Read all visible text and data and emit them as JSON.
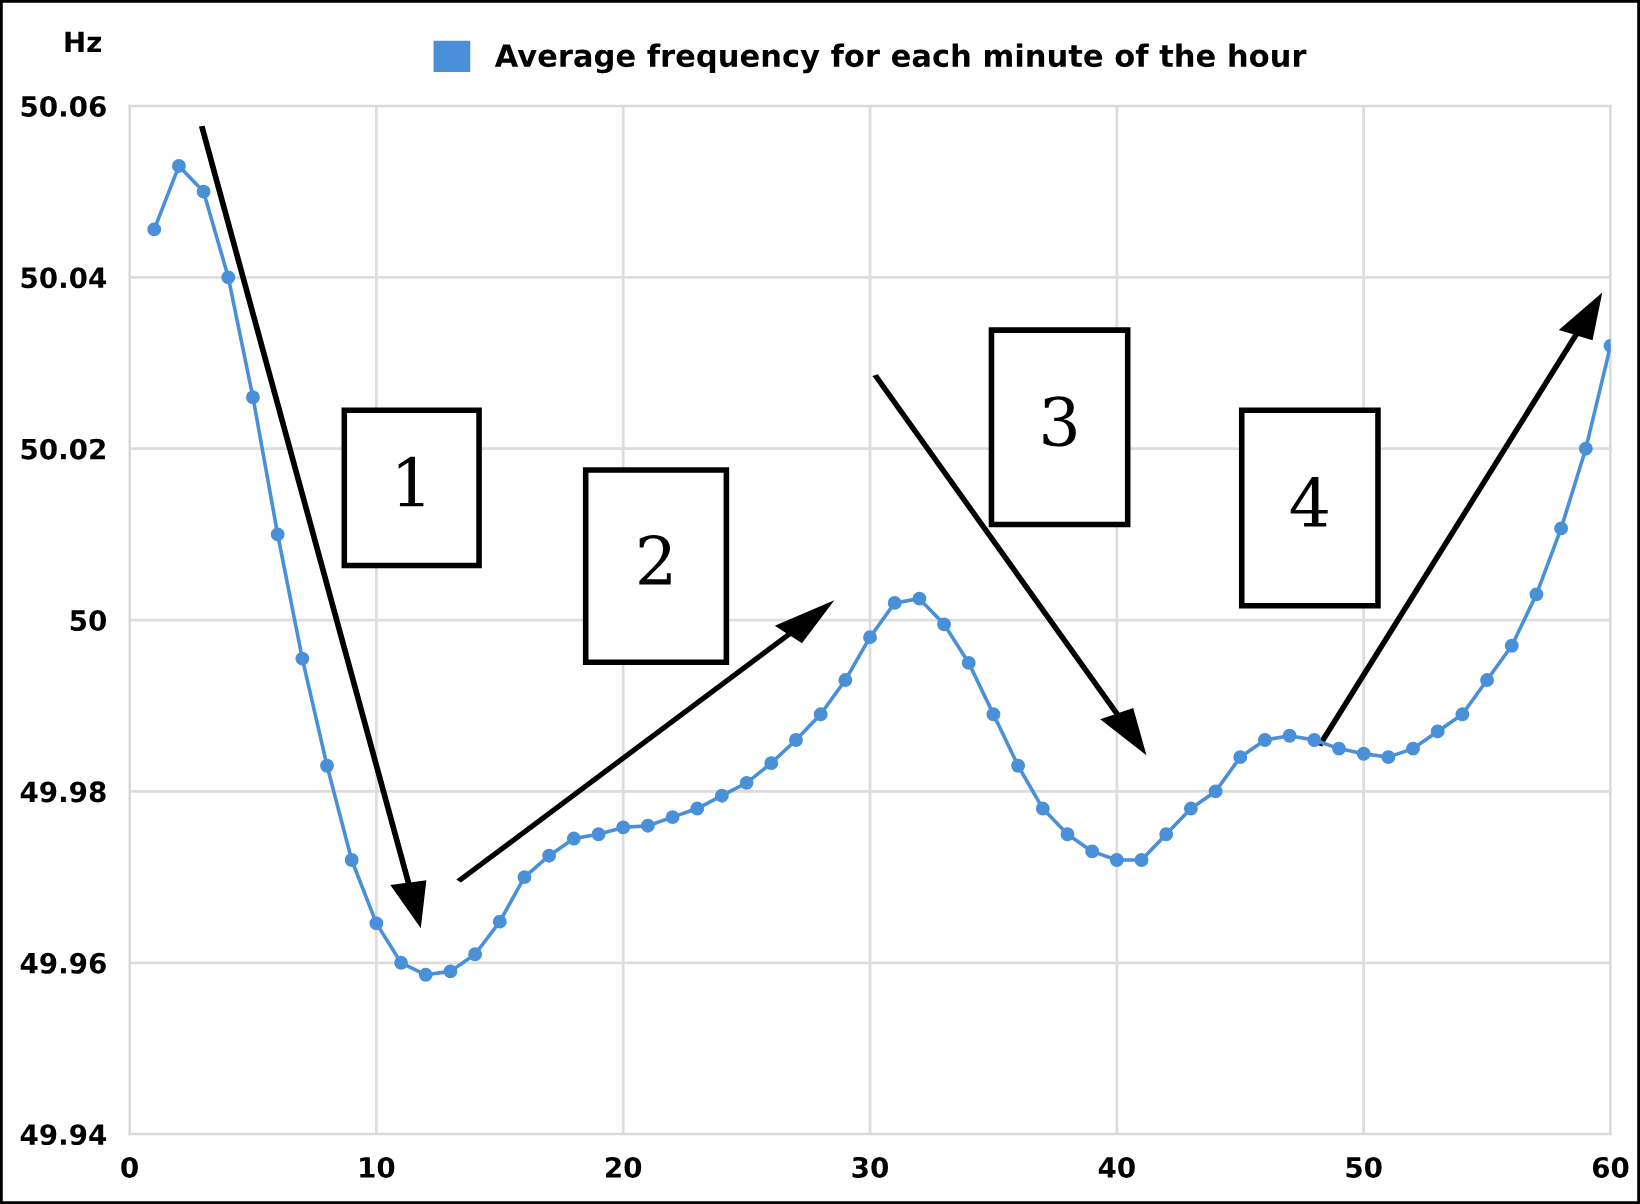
{
  "chart_data": {
    "type": "line",
    "ylabel": "Hz",
    "legend": "top",
    "x": [
      1,
      2,
      3,
      4,
      5,
      6,
      7,
      8,
      9,
      10,
      11,
      12,
      13,
      14,
      15,
      16,
      17,
      18,
      19,
      20,
      21,
      22,
      23,
      24,
      25,
      26,
      27,
      28,
      29,
      30,
      31,
      32,
      33,
      34,
      35,
      36,
      37,
      38,
      39,
      40,
      41,
      42,
      43,
      44,
      45,
      46,
      47,
      48,
      49,
      50,
      51,
      52,
      53,
      54,
      55,
      56,
      57,
      58,
      59,
      60
    ],
    "series": [
      {
        "name": "Average frequency for each minute of the hour",
        "color": "#4a90d9",
        "values": [
          50.0456,
          50.053,
          50.05,
          50.04,
          50.026,
          50.01,
          49.9955,
          49.983,
          49.972,
          49.9646,
          49.96,
          49.9586,
          49.959,
          49.961,
          49.9648,
          49.97,
          49.9725,
          49.9745,
          49.975,
          49.9758,
          49.976,
          49.977,
          49.978,
          49.9795,
          49.981,
          49.9833,
          49.986,
          49.989,
          49.993,
          49.998,
          50.002,
          50.0025,
          49.9995,
          49.995,
          49.989,
          49.983,
          49.978,
          49.975,
          49.973,
          49.972,
          49.972,
          49.975,
          49.978,
          49.98,
          49.984,
          49.986,
          49.9865,
          49.986,
          49.985,
          49.9844,
          49.984,
          49.985,
          49.987,
          49.989,
          49.993,
          49.997,
          50.003,
          50.0107,
          50.02,
          50.032
        ]
      }
    ],
    "xlim": [
      0,
      60
    ],
    "xticks": [
      0,
      10,
      20,
      30,
      40,
      50,
      60
    ],
    "ylim": [
      49.94,
      50.06
    ],
    "yticks": [
      49.94,
      49.96,
      49.98,
      50,
      50.02,
      50.04,
      50.06
    ],
    "grid": true,
    "marker": "circle",
    "line_style": "solid",
    "annotations": [
      "1",
      "2",
      "3",
      "4"
    ]
  }
}
